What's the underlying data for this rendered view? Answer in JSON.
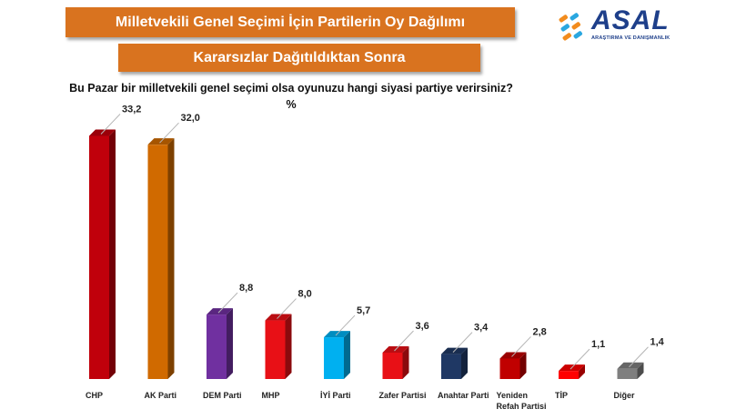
{
  "header": {
    "title": "Milletvekili Genel Seçimi İçin Partilerin Oy Dağılımı",
    "subtitle": "Kararsızlar Dağıtıldıktan Sonra",
    "question": "Bu Pazar bir milletvekili genel seçimi olsa oyunuzu hangi siyasi partiye verirsiniz?",
    "unit": "%"
  },
  "logo": {
    "name": "ASAL",
    "tagline": "ARAŞTIRMA VE DANIŞMANLIK",
    "colors": [
      "#f28c1e",
      "#2aa7e0",
      "#1e3f8a"
    ]
  },
  "chart_data": {
    "type": "bar",
    "title": "Milletvekili Genel Seçimi İçin Partilerin Oy Dağılımı",
    "subtitle": "Kararsızlar Dağıtıldıktan Sonra",
    "xlabel": "",
    "ylabel": "%",
    "ylim": [
      0,
      35
    ],
    "grid": false,
    "categories": [
      "CHP",
      "AK Parti",
      "DEM Parti",
      "MHP",
      "İYİ Parti",
      "Zafer Partisi",
      "Anahtar Parti",
      "Yeniden Refah Partisi",
      "TİP",
      "Diğer"
    ],
    "category_lines": [
      [
        "CHP"
      ],
      [
        "AK Parti"
      ],
      [
        "DEM Parti"
      ],
      [
        "MHP"
      ],
      [
        "İYİ Parti"
      ],
      [
        "Zafer Partisi"
      ],
      [
        "Anahtar Parti"
      ],
      [
        "Yeniden",
        "Refah Partisi"
      ],
      [
        "TİP"
      ],
      [
        "Diğer"
      ]
    ],
    "values": [
      33.2,
      32.0,
      8.8,
      8.0,
      5.7,
      3.6,
      3.4,
      2.8,
      1.1,
      1.4
    ],
    "value_labels": [
      "33,2",
      "32,0",
      "8,8",
      "8,0",
      "5,7",
      "3,6",
      "3,4",
      "2,8",
      "1,1",
      "1,4"
    ],
    "colors": [
      "#c0000b",
      "#d06a00",
      "#7030a0",
      "#e81016",
      "#00b0f0",
      "#e81016",
      "#1f3864",
      "#c00000",
      "#ff0000",
      "#7f7f7f"
    ]
  }
}
